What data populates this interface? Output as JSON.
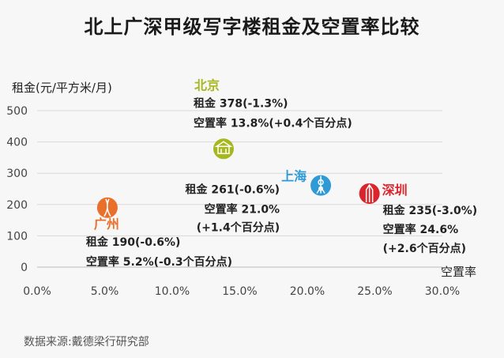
{
  "chart_data": {
    "type": "scatter",
    "title": "北上广深甲级写字楼租金及空置率比较",
    "xlabel": "空置率",
    "ylabel": "租金(元/平方米/月)",
    "xlim": [
      0,
      30
    ],
    "ylim": [
      0,
      500
    ],
    "x_ticks": [
      "0.0%",
      "5.0%",
      "10.0%",
      "15.0%",
      "20.0%",
      "25.0%",
      "30.0%"
    ],
    "y_ticks": [
      "0",
      "100",
      "200",
      "300",
      "400",
      "500"
    ],
    "grid": true,
    "points": [
      {
        "city": "北京",
        "x": 13.8,
        "y": 378,
        "color": "#a7b81f",
        "icon": "tiananmen-icon",
        "lines": [
          "租金 378(-1.3%)",
          "空置率 13.8%(+0.4个百分点)"
        ]
      },
      {
        "city": "上海",
        "x": 21.0,
        "y": 261,
        "color": "#2e9bd6",
        "icon": "oriental-pearl-tower-icon",
        "lines": [
          "租金 261(-0.6%)",
          "空置率 21.0%",
          "(+1.4个百分点)"
        ]
      },
      {
        "city": "广州",
        "x": 5.2,
        "y": 190,
        "color": "#e8702a",
        "icon": "canton-tower-icon",
        "lines": [
          "租金 190(-0.6%)",
          "空置率 5.2%(-0.3个百分点)"
        ]
      },
      {
        "city": "深圳",
        "x": 24.6,
        "y": 235,
        "color": "#d9252b",
        "icon": "ping-an-tower-icon",
        "lines": [
          "租金 235(-3.0%)",
          "空置率 24.6%",
          "(+2.6个百分点)"
        ]
      }
    ]
  },
  "source": "数据来源:戴德梁行研究部"
}
